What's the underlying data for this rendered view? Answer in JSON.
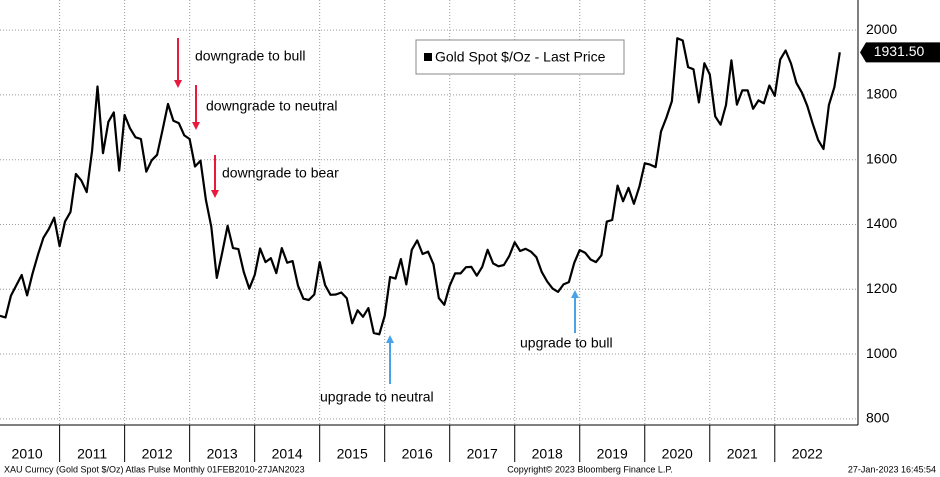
{
  "chart_data": {
    "type": "line",
    "series": [
      {
        "name": "Gold Spot $/Oz - Last Price",
        "color": "#000000",
        "x": [
          2010.083,
          2010.167,
          2010.25,
          2010.333,
          2010.417,
          2010.5,
          2010.583,
          2010.667,
          2010.75,
          2010.833,
          2010.917,
          2011,
          2011.083,
          2011.167,
          2011.25,
          2011.333,
          2011.417,
          2011.5,
          2011.583,
          2011.667,
          2011.75,
          2011.833,
          2011.917,
          2012,
          2012.083,
          2012.167,
          2012.25,
          2012.333,
          2012.417,
          2012.5,
          2012.583,
          2012.667,
          2012.75,
          2012.833,
          2012.917,
          2013,
          2013.083,
          2013.167,
          2013.25,
          2013.333,
          2013.417,
          2013.5,
          2013.583,
          2013.667,
          2013.75,
          2013.833,
          2013.917,
          2014,
          2014.083,
          2014.167,
          2014.25,
          2014.333,
          2014.417,
          2014.5,
          2014.583,
          2014.667,
          2014.75,
          2014.833,
          2014.917,
          2015,
          2015.083,
          2015.167,
          2015.25,
          2015.333,
          2015.417,
          2015.5,
          2015.583,
          2015.667,
          2015.75,
          2015.833,
          2015.917,
          2016,
          2016.083,
          2016.167,
          2016.25,
          2016.333,
          2016.417,
          2016.5,
          2016.583,
          2016.667,
          2016.75,
          2016.833,
          2016.917,
          2017,
          2017.083,
          2017.167,
          2017.25,
          2017.333,
          2017.417,
          2017.5,
          2017.583,
          2017.667,
          2017.75,
          2017.833,
          2017.917,
          2018,
          2018.083,
          2018.167,
          2018.25,
          2018.333,
          2018.417,
          2018.5,
          2018.583,
          2018.667,
          2018.75,
          2018.833,
          2018.917,
          2019,
          2019.083,
          2019.167,
          2019.25,
          2019.333,
          2019.417,
          2019.5,
          2019.583,
          2019.667,
          2019.75,
          2019.833,
          2019.917,
          2020,
          2020.083,
          2020.167,
          2020.25,
          2020.333,
          2020.417,
          2020.5,
          2020.583,
          2020.667,
          2020.75,
          2020.833,
          2020.917,
          2021,
          2021.083,
          2021.167,
          2021.25,
          2021.333,
          2021.417,
          2021.5,
          2021.583,
          2021.667,
          2021.75,
          2021.833,
          2021.917,
          2022,
          2022.083,
          2022.167,
          2022.25,
          2022.333,
          2022.417,
          2022.5,
          2022.583,
          2022.667,
          2022.75,
          2022.833,
          2022.917,
          2023
        ],
        "values": [
          1118,
          1113,
          1180,
          1212,
          1244,
          1181,
          1248,
          1307,
          1359,
          1386,
          1421,
          1333,
          1409,
          1439,
          1556,
          1536,
          1500,
          1628,
          1826,
          1620,
          1717,
          1746,
          1566,
          1738,
          1697,
          1669,
          1664,
          1563,
          1598,
          1615,
          1691,
          1772,
          1720,
          1713,
          1675,
          1664,
          1579,
          1597,
          1476,
          1393,
          1235,
          1313,
          1396,
          1327,
          1324,
          1253,
          1202,
          1244,
          1326,
          1284,
          1296,
          1250,
          1327,
          1282,
          1287,
          1211,
          1171,
          1167,
          1184,
          1284,
          1213,
          1183,
          1184,
          1190,
          1172,
          1095,
          1135,
          1115,
          1142,
          1065,
          1061,
          1118,
          1238,
          1233,
          1293,
          1215,
          1322,
          1351,
          1309,
          1316,
          1277,
          1173,
          1152,
          1211,
          1249,
          1249,
          1268,
          1269,
          1242,
          1269,
          1322,
          1280,
          1271,
          1275,
          1303,
          1345,
          1318,
          1325,
          1316,
          1299,
          1253,
          1224,
          1202,
          1192,
          1215,
          1222,
          1282,
          1321,
          1313,
          1292,
          1284,
          1305,
          1409,
          1414,
          1520,
          1472,
          1513,
          1464,
          1517,
          1589,
          1585,
          1577,
          1687,
          1730,
          1781,
          1975,
          1968,
          1886,
          1879,
          1777,
          1898,
          1863,
          1734,
          1708,
          1769,
          1907,
          1770,
          1814,
          1814,
          1757,
          1783,
          1774,
          1829,
          1797,
          1909,
          1937,
          1897,
          1837,
          1807,
          1766,
          1711,
          1661,
          1633,
          1769,
          1824,
          1931.5
        ]
      }
    ],
    "last_value_label": "1931.50",
    "xlim": [
      2010.083,
      2023.28
    ],
    "xticks": [
      {
        "value": 2010.5,
        "label": "2010"
      },
      {
        "value": 2011.5,
        "label": "2011"
      },
      {
        "value": 2012.5,
        "label": "2012"
      },
      {
        "value": 2013.5,
        "label": "2013"
      },
      {
        "value": 2014.5,
        "label": "2014"
      },
      {
        "value": 2015.5,
        "label": "2015"
      },
      {
        "value": 2016.5,
        "label": "2016"
      },
      {
        "value": 2017.5,
        "label": "2017"
      },
      {
        "value": 2018.5,
        "label": "2018"
      },
      {
        "value": 2019.5,
        "label": "2019"
      },
      {
        "value": 2020.5,
        "label": "2020"
      },
      {
        "value": 2021.5,
        "label": "2021"
      },
      {
        "value": 2022.5,
        "label": "2022"
      }
    ],
    "ylim": [
      781,
      2093
    ],
    "yticks": [
      800,
      1000,
      1200,
      1400,
      1600,
      1800,
      2000
    ],
    "grid": true,
    "annotations": [
      "downgrade to bull",
      "downgrade to neutral",
      "downgrade to bear",
      "upgrade to neutral",
      "upgrade to bull"
    ],
    "footer": [
      "XAU Curncy (Gold Spot  $/Oz) Atlas Pulse  Monthly 01FEB2010-27JAN2023",
      "Copyright© 2023 Bloomberg Finance L.P.",
      "27-Jan-2023 16:45:54"
    ]
  }
}
